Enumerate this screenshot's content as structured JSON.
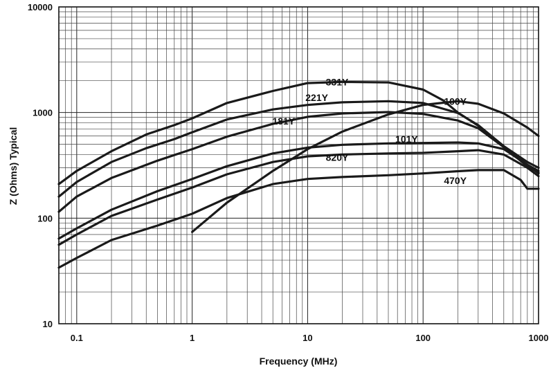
{
  "chart_data": {
    "type": "line",
    "title": "",
    "xlabel": "Frequency (MHz)",
    "ylabel": "Z (Ohms) Typical",
    "xscale": "log",
    "yscale": "log",
    "xlim": [
      0.07,
      1000
    ],
    "ylim": [
      10,
      10000
    ],
    "grid": true,
    "legend": "none",
    "x_ticks": [
      "0.1",
      "1",
      "10",
      "100",
      "1000"
    ],
    "y_ticks": [
      "10",
      "100",
      "1000",
      "10000"
    ],
    "series": [
      {
        "name": "331Y",
        "x": [
          0.07,
          0.1,
          0.2,
          0.4,
          0.7,
          1,
          2,
          5,
          10,
          20,
          50,
          100,
          150,
          200,
          300,
          500,
          800,
          1000
        ],
        "y": [
          210,
          280,
          430,
          620,
          760,
          880,
          1230,
          1600,
          1900,
          1950,
          1930,
          1650,
          1300,
          1000,
          750,
          480,
          340,
          300
        ]
      },
      {
        "name": "221Y",
        "x": [
          0.07,
          0.1,
          0.2,
          0.4,
          0.7,
          1,
          2,
          5,
          10,
          20,
          50,
          100,
          200,
          300,
          500,
          800,
          1000
        ],
        "y": [
          160,
          220,
          340,
          460,
          560,
          650,
          860,
          1070,
          1180,
          1250,
          1280,
          1230,
          990,
          760,
          480,
          320,
          280
        ]
      },
      {
        "name": "181Y",
        "x": [
          0.07,
          0.1,
          0.2,
          0.5,
          1,
          2,
          5,
          10,
          20,
          50,
          100,
          200,
          300,
          500,
          800,
          1000
        ],
        "y": [
          115,
          160,
          240,
          350,
          450,
          590,
          780,
          910,
          980,
          1010,
          970,
          840,
          710,
          470,
          310,
          270
        ]
      },
      {
        "name": "100Y",
        "x": [
          1,
          2,
          5,
          10,
          20,
          50,
          100,
          200,
          300,
          500,
          800,
          1000
        ],
        "y": [
          74,
          140,
          280,
          450,
          660,
          960,
          1180,
          1280,
          1210,
          980,
          720,
          600
        ]
      },
      {
        "name": "101Y",
        "x": [
          0.07,
          0.1,
          0.2,
          0.5,
          1,
          2,
          5,
          10,
          20,
          50,
          100,
          200,
          300,
          500,
          800,
          1000
        ],
        "y": [
          64,
          80,
          120,
          180,
          235,
          310,
          410,
          465,
          495,
          510,
          515,
          520,
          510,
          450,
          320,
          265
        ]
      },
      {
        "name": "820Y",
        "x": [
          0.07,
          0.1,
          0.2,
          0.5,
          1,
          2,
          5,
          10,
          20,
          50,
          100,
          200,
          300,
          500,
          800,
          1000
        ],
        "y": [
          56,
          70,
          105,
          150,
          195,
          260,
          340,
          385,
          400,
          410,
          415,
          430,
          440,
          400,
          300,
          250
        ]
      },
      {
        "name": "470Y",
        "x": [
          0.07,
          0.1,
          0.2,
          0.5,
          1,
          2,
          5,
          10,
          20,
          50,
          100,
          200,
          300,
          500,
          700,
          800,
          1000
        ],
        "y": [
          34,
          42,
          62,
          85,
          110,
          155,
          210,
          235,
          245,
          255,
          265,
          278,
          285,
          285,
          230,
          190,
          190
        ]
      }
    ]
  }
}
